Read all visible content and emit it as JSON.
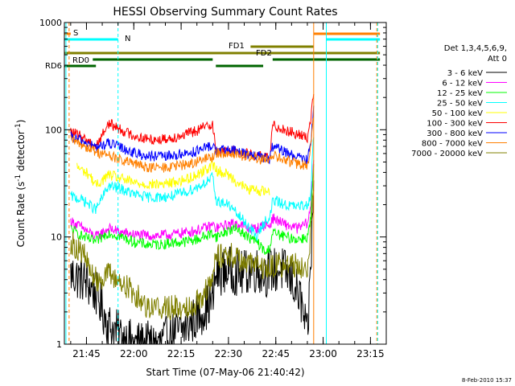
{
  "chart_data": {
    "type": "line",
    "title": "HESSI Observing Summary Count Rates",
    "xlabel": "Start Time (07-May-06 21:40:42)",
    "ylabel_main": "Count Rate (s",
    "ylabel_sup1": "-1",
    "ylabel_mid": " detector",
    "ylabel_sup2": "-1",
    "ylabel_end": ")",
    "y_scale": "log",
    "ylim": [
      1,
      1000
    ],
    "xlim_minutes": [
      -2,
      100
    ],
    "x_ticks": [
      {
        "label": "21:45",
        "t": 5
      },
      {
        "label": "22:00",
        "t": 20
      },
      {
        "label": "22:15",
        "t": 35
      },
      {
        "label": "22:30",
        "t": 50
      },
      {
        "label": "22:45",
        "t": 65
      },
      {
        "label": "23:00",
        "t": 80
      },
      {
        "label": "23:15",
        "t": 95
      }
    ],
    "y_ticks": [
      {
        "label": "1",
        "v": 1
      },
      {
        "label": "10",
        "v": 10
      },
      {
        "label": "100",
        "v": 100
      },
      {
        "label": "1000",
        "v": 1000
      }
    ],
    "legend_header": [
      "Det 1,3,4,5,6,9,",
      "Att 0"
    ],
    "footer_date": "8-Feb-2010 15:37",
    "series": [
      {
        "name": "3 - 6 keV",
        "color": "#000000",
        "points": [
          [
            0,
            4.5
          ],
          [
            4,
            4
          ],
          [
            8,
            3
          ],
          [
            12,
            1.5
          ],
          [
            16,
            1.2
          ],
          [
            20,
            1
          ],
          [
            24,
            1
          ],
          [
            28,
            1
          ],
          [
            32,
            1.2
          ],
          [
            36,
            1.4
          ],
          [
            40,
            1.8
          ],
          [
            44,
            2.4
          ],
          [
            45,
            2.5
          ],
          [
            46,
            4.5
          ],
          [
            50,
            5
          ],
          [
            54,
            4.5
          ],
          [
            58,
            5
          ],
          [
            62,
            4.5
          ],
          [
            63,
            5
          ],
          [
            64,
            4.8
          ],
          [
            67,
            5
          ],
          [
            70,
            4
          ],
          [
            73,
            2.5
          ],
          [
            75,
            1.1
          ],
          [
            76,
            5
          ],
          [
            77,
            25
          ]
        ]
      },
      {
        "name": "6 - 12 keV",
        "color": "#ff00ff",
        "points": [
          [
            0,
            14
          ],
          [
            4,
            12
          ],
          [
            8,
            10
          ],
          [
            12,
            12
          ],
          [
            16,
            11
          ],
          [
            20,
            10.5
          ],
          [
            24,
            10.3
          ],
          [
            28,
            10.3
          ],
          [
            32,
            10.5
          ],
          [
            36,
            11
          ],
          [
            40,
            11.5
          ],
          [
            44,
            12.5
          ],
          [
            45,
            13
          ],
          [
            46,
            12
          ],
          [
            50,
            13
          ],
          [
            53,
            13.5
          ],
          [
            56,
            12
          ],
          [
            59,
            12
          ],
          [
            62,
            13
          ],
          [
            63,
            12.5
          ],
          [
            64,
            15
          ],
          [
            68,
            13
          ],
          [
            72,
            12
          ],
          [
            75,
            13.5
          ],
          [
            76,
            18
          ],
          [
            77,
            55
          ]
        ]
      },
      {
        "name": "12 - 25 keV",
        "color": "#00ff00",
        "points": [
          [
            0,
            12
          ],
          [
            4,
            10
          ],
          [
            8,
            9
          ],
          [
            12,
            11
          ],
          [
            16,
            10
          ],
          [
            20,
            9
          ],
          [
            24,
            8.5
          ],
          [
            28,
            8.5
          ],
          [
            32,
            8.8
          ],
          [
            36,
            9
          ],
          [
            40,
            9.5
          ],
          [
            44,
            10.5
          ],
          [
            45,
            11
          ],
          [
            46,
            10
          ],
          [
            50,
            11.5
          ],
          [
            53,
            12
          ],
          [
            56,
            10
          ],
          [
            59,
            9
          ],
          [
            62,
            7
          ],
          [
            63,
            8
          ],
          [
            64,
            11
          ],
          [
            68,
            10
          ],
          [
            72,
            9.5
          ],
          [
            75,
            10
          ],
          [
            76,
            14
          ],
          [
            77,
            45
          ]
        ]
      },
      {
        "name": "25 - 50 keV",
        "color": "#00ffff",
        "points": [
          [
            0,
            24
          ],
          [
            4,
            22
          ],
          [
            8,
            18
          ],
          [
            12,
            30
          ],
          [
            16,
            28
          ],
          [
            20,
            25
          ],
          [
            24,
            23.5
          ],
          [
            28,
            23.5
          ],
          [
            32,
            24
          ],
          [
            36,
            26
          ],
          [
            40,
            29
          ],
          [
            44,
            34
          ],
          [
            45,
            36
          ],
          [
            46,
            22
          ],
          [
            50,
            20
          ],
          [
            53,
            16
          ],
          [
            56,
            13
          ],
          [
            59,
            10
          ],
          [
            62,
            15
          ],
          [
            63,
            14
          ],
          [
            64,
            22
          ],
          [
            68,
            20
          ],
          [
            72,
            19
          ],
          [
            75,
            20
          ],
          [
            76,
            25
          ],
          [
            77,
            90
          ]
        ]
      },
      {
        "name": "50 - 100 keV",
        "color": "#ffff00",
        "points": [
          [
            2,
            45
          ],
          [
            6,
            38
          ],
          [
            8,
            30
          ],
          [
            12,
            38
          ],
          [
            16,
            35
          ],
          [
            20,
            32
          ],
          [
            24,
            31
          ],
          [
            28,
            31
          ],
          [
            32,
            32
          ],
          [
            36,
            34
          ],
          [
            40,
            38
          ],
          [
            44,
            45
          ],
          [
            45,
            48
          ],
          [
            46,
            42
          ],
          [
            50,
            38
          ],
          [
            53,
            32
          ],
          [
            56,
            28
          ],
          [
            59,
            27
          ],
          [
            62,
            27
          ],
          [
            63,
            26
          ]
        ]
      },
      {
        "name": "100 - 300 keV",
        "color": "#ff0000",
        "points": [
          [
            0,
            95
          ],
          [
            4,
            85
          ],
          [
            8,
            70
          ],
          [
            12,
            115
          ],
          [
            16,
            100
          ],
          [
            20,
            88
          ],
          [
            24,
            82
          ],
          [
            28,
            81
          ],
          [
            32,
            84
          ],
          [
            36,
            90
          ],
          [
            40,
            98
          ],
          [
            44,
            112
          ],
          [
            45,
            115
          ],
          [
            46,
            62
          ],
          [
            50,
            64
          ],
          [
            54,
            62
          ],
          [
            58,
            58
          ],
          [
            62,
            55
          ],
          [
            63,
            52
          ],
          [
            64,
            110
          ],
          [
            68,
            100
          ],
          [
            72,
            90
          ],
          [
            75,
            85
          ],
          [
            76,
            120
          ],
          [
            77,
            230
          ]
        ]
      },
      {
        "name": "300 - 800 keV",
        "color": "#0000ff",
        "points": [
          [
            0,
            85
          ],
          [
            4,
            78
          ],
          [
            8,
            68
          ],
          [
            12,
            75
          ],
          [
            16,
            68
          ],
          [
            20,
            61
          ],
          [
            24,
            57
          ],
          [
            28,
            56
          ],
          [
            32,
            57
          ],
          [
            36,
            60
          ],
          [
            40,
            63
          ],
          [
            44,
            70
          ],
          [
            45,
            72
          ],
          [
            46,
            64
          ],
          [
            50,
            65
          ],
          [
            54,
            62
          ],
          [
            58,
            58
          ],
          [
            62,
            54
          ],
          [
            63,
            52
          ],
          [
            64,
            70
          ],
          [
            68,
            62
          ],
          [
            72,
            55
          ],
          [
            75,
            52
          ],
          [
            76,
            75
          ],
          [
            77,
            160
          ]
        ]
      },
      {
        "name": "800 - 7000 keV",
        "color": "#ff8000",
        "points": [
          [
            0,
            80
          ],
          [
            4,
            72
          ],
          [
            8,
            62
          ],
          [
            12,
            58
          ],
          [
            16,
            52
          ],
          [
            20,
            48
          ],
          [
            24,
            45
          ],
          [
            28,
            44
          ],
          [
            32,
            45
          ],
          [
            36,
            47
          ],
          [
            40,
            50
          ],
          [
            44,
            55
          ],
          [
            45,
            56
          ],
          [
            46,
            60
          ],
          [
            50,
            61
          ],
          [
            54,
            58
          ],
          [
            58,
            55
          ],
          [
            62,
            52
          ],
          [
            63,
            50
          ],
          [
            64,
            58
          ],
          [
            68,
            52
          ],
          [
            72,
            48
          ],
          [
            75,
            46
          ],
          [
            76,
            65
          ],
          [
            77,
            140
          ]
        ]
      },
      {
        "name": "7000 - 20000 keV",
        "color": "#808000",
        "points": [
          [
            0,
            9
          ],
          [
            4,
            7
          ],
          [
            6,
            5
          ],
          [
            8,
            4
          ],
          [
            12,
            4.5
          ],
          [
            16,
            3.8
          ],
          [
            20,
            3
          ],
          [
            24,
            2.3
          ],
          [
            28,
            2.2
          ],
          [
            32,
            2.2
          ],
          [
            36,
            2.2
          ],
          [
            40,
            2.5
          ],
          [
            44,
            3.5
          ],
          [
            45,
            4
          ],
          [
            46,
            6.5
          ],
          [
            50,
            7
          ],
          [
            54,
            6
          ],
          [
            58,
            5.5
          ],
          [
            62,
            5
          ],
          [
            63,
            5.2
          ],
          [
            64,
            5.5
          ],
          [
            68,
            5.5
          ],
          [
            72,
            5.5
          ],
          [
            75,
            5
          ],
          [
            76,
            10
          ],
          [
            77,
            25
          ]
        ]
      }
    ],
    "flag_bars": [
      {
        "label": "S",
        "color": "#ff8000",
        "segments": [
          [
            -2,
            0
          ]
        ]
      },
      {
        "label": "",
        "color": "#ff8000",
        "segments": [
          [
            77,
            98
          ]
        ]
      },
      {
        "label": "N",
        "color": "#00ffff",
        "segments": [
          [
            -2,
            15
          ]
        ]
      },
      {
        "label": "",
        "color": "#00ffff",
        "segments": [
          [
            81,
            98
          ]
        ]
      },
      {
        "label": "FD1",
        "color": "#808000",
        "segments": [
          [
            57,
            77
          ]
        ]
      },
      {
        "label": "FD2",
        "color": "#808000",
        "segments": [
          [
            -2,
            98
          ]
        ]
      },
      {
        "label": "RD0",
        "color": "#006400",
        "segments": [
          [
            7,
            45
          ],
          [
            64,
            98
          ]
        ]
      },
      {
        "label": "RD6",
        "color": "#006400",
        "segments": [
          [
            -2,
            8
          ],
          [
            46,
            61
          ]
        ]
      }
    ],
    "markers": [
      {
        "t": -1.5,
        "color": "#00ffff",
        "style": "solid"
      },
      {
        "t": -0.5,
        "color": "#ff8000",
        "style": "dashed"
      },
      {
        "t": 15,
        "color": "#00ffff",
        "style": "dashed"
      },
      {
        "t": 77,
        "color": "#ff8000",
        "style": "solid"
      },
      {
        "t": 81,
        "color": "#00ffff",
        "style": "solid"
      },
      {
        "t": 97,
        "color": "#ff8000",
        "style": "dashed"
      },
      {
        "t": 97.3,
        "color": "#00ffff",
        "style": "dashed"
      }
    ]
  }
}
